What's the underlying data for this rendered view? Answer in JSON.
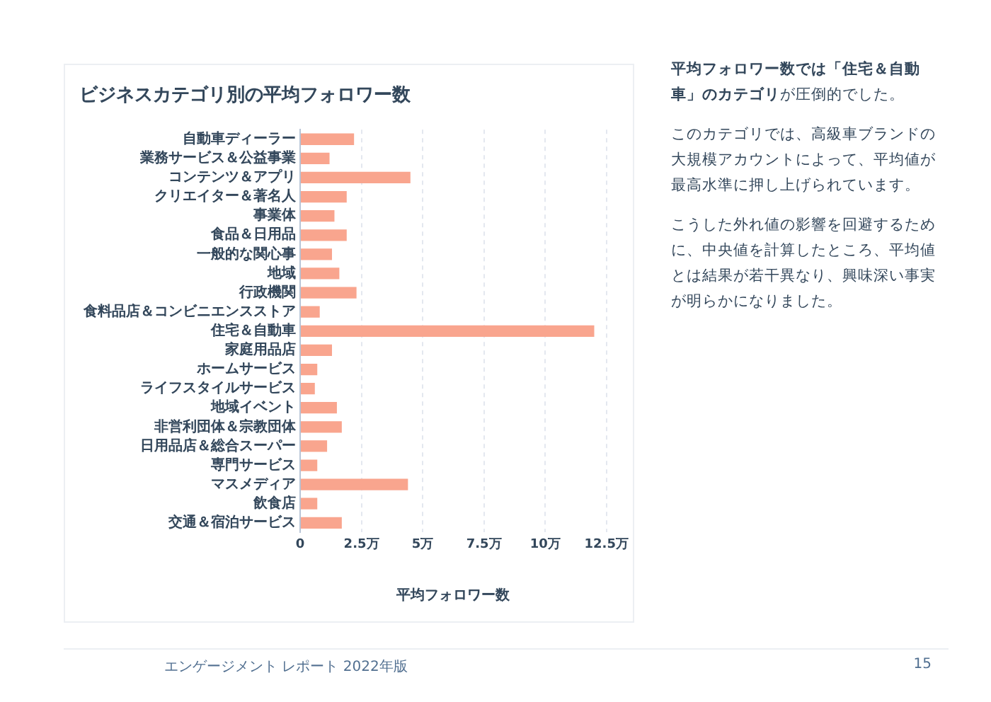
{
  "chart_data": {
    "type": "bar",
    "orientation": "horizontal",
    "title": "ビジネスカテゴリ別の平均フォロワー数",
    "xlabel": "平均フォロワー数",
    "categories": [
      "自動車ディーラー",
      "業務サービス＆公益事業",
      "コンテンツ＆アプリ",
      "クリエイター＆著名人",
      "事業体",
      "食品＆日用品",
      "一般的な関心事",
      "地域",
      "行政機関",
      "食料品店＆コンビニエンスストア",
      "住宅＆自動車",
      "家庭用品店",
      "ホームサービス",
      "ライフスタイルサービス",
      "地域イベント",
      "非営利団体＆宗教団体",
      "日用品店＆総合スーパー",
      "専門サービス",
      "マスメディア",
      "飲食店",
      "交通＆宿泊サービス"
    ],
    "values": [
      2.2,
      1.2,
      4.5,
      1.9,
      1.4,
      1.9,
      1.3,
      1.6,
      2.3,
      0.8,
      12.0,
      1.3,
      0.7,
      0.6,
      1.5,
      1.7,
      1.1,
      0.7,
      4.4,
      0.7,
      1.7
    ],
    "color": "#f9a58e",
    "xlim": [
      0,
      12.5
    ],
    "xticks": [
      0,
      {
        "value": 2.5,
        "label": "2.5万"
      },
      {
        "value": 5,
        "label": "5万"
      },
      {
        "value": 7.5,
        "label": "7.5万"
      },
      {
        "value": 10,
        "label": "10万"
      },
      {
        "value": 12.5,
        "label": "12.5万"
      }
    ],
    "grid": "x",
    "annotations": [
      "平均フォロワー数では「住宅＆自動車」のカテゴリ",
      "が圧倒的でした。",
      "このカテゴリでは、高級車ブランドの大規模アカウントによって、平均値が最高水準に押し上げられています。",
      "こうした外れ値の影響を回避するために、中央値を計算したところ、平均値とは結果が若干異なり、興味深い事実が明らかになりました。",
      "エンゲージメント レポート 2022年版",
      "15"
    ]
  }
}
